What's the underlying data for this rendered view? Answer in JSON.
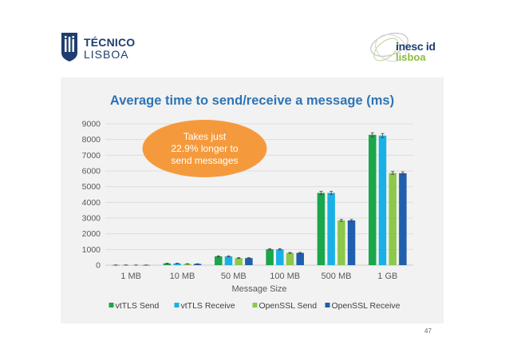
{
  "header": {
    "tecnico_line1": "TÉCNICO",
    "tecnico_line2": "LISBOA",
    "inesc_line1": "inesc id",
    "inesc_line2": "lisboa"
  },
  "chart_data": {
    "type": "bar",
    "title": "Average time to send/receive a message (ms)",
    "xlabel": "Message Size",
    "ylabel": "",
    "categories": [
      "1 MB",
      "10 MB",
      "50 MB",
      "100 MB",
      "500 MB",
      "1 GB"
    ],
    "ylim": [
      0,
      9000
    ],
    "yticks": [
      0,
      1000,
      2000,
      3000,
      4000,
      5000,
      6000,
      7000,
      8000,
      9000
    ],
    "grid": true,
    "legend_position": "bottom",
    "series": [
      {
        "name": "vtTLS Send",
        "color": "#1aa64a",
        "values": [
          10,
          110,
          560,
          1010,
          4600,
          8300
        ],
        "errors": [
          5,
          15,
          35,
          40,
          100,
          130
        ]
      },
      {
        "name": "vtTLS Receive",
        "color": "#1ab0e6",
        "values": [
          10,
          110,
          560,
          1010,
          4600,
          8250
        ],
        "errors": [
          5,
          15,
          35,
          40,
          100,
          130
        ]
      },
      {
        "name": "OpenSSL Send",
        "color": "#8cc84b",
        "values": [
          8,
          80,
          450,
          780,
          2850,
          5870
        ],
        "errors": [
          4,
          10,
          25,
          30,
          60,
          90
        ]
      },
      {
        "name": "OpenSSL Receive",
        "color": "#1f5fad",
        "values": [
          8,
          80,
          450,
          780,
          2850,
          5850
        ],
        "errors": [
          4,
          10,
          25,
          30,
          60,
          90
        ]
      }
    ],
    "annotation": "Takes just\n22.9% longer to\nsend messages"
  },
  "colors": {
    "title": "#2e74b5",
    "callout": "#f59a3c",
    "panel_background": "#f2f2f2"
  },
  "footer": {
    "page_number": "47"
  }
}
